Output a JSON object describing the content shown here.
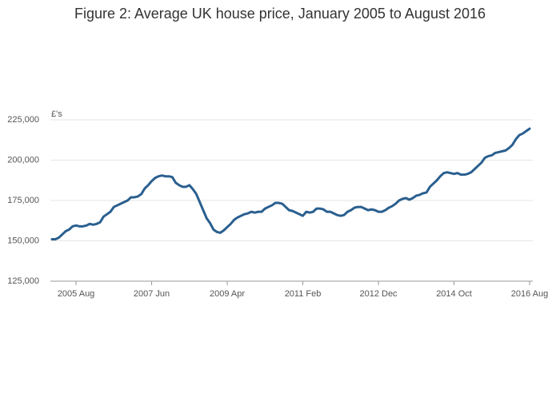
{
  "chart_data": {
    "type": "line",
    "title": "Figure 2: Average UK house price, January 2005 to August 2016",
    "y_label": "£'s",
    "x": [
      "2005-01",
      "2005-02",
      "2005-03",
      "2005-04",
      "2005-05",
      "2005-06",
      "2005-07",
      "2005-08",
      "2005-09",
      "2005-10",
      "2005-11",
      "2005-12",
      "2006-01",
      "2006-02",
      "2006-03",
      "2006-04",
      "2006-05",
      "2006-06",
      "2006-07",
      "2006-08",
      "2006-09",
      "2006-10",
      "2006-11",
      "2006-12",
      "2007-01",
      "2007-02",
      "2007-03",
      "2007-04",
      "2007-05",
      "2007-06",
      "2007-07",
      "2007-08",
      "2007-09",
      "2007-10",
      "2007-11",
      "2007-12",
      "2008-01",
      "2008-02",
      "2008-03",
      "2008-04",
      "2008-05",
      "2008-06",
      "2008-07",
      "2008-08",
      "2008-09",
      "2008-10",
      "2008-11",
      "2008-12",
      "2009-01",
      "2009-02",
      "2009-03",
      "2009-04",
      "2009-05",
      "2009-06",
      "2009-07",
      "2009-08",
      "2009-09",
      "2009-10",
      "2009-11",
      "2009-12",
      "2010-01",
      "2010-02",
      "2010-03",
      "2010-04",
      "2010-05",
      "2010-06",
      "2010-07",
      "2010-08",
      "2010-09",
      "2010-10",
      "2010-11",
      "2010-12",
      "2011-01",
      "2011-02",
      "2011-03",
      "2011-04",
      "2011-05",
      "2011-06",
      "2011-07",
      "2011-08",
      "2011-09",
      "2011-10",
      "2011-11",
      "2011-12",
      "2012-01",
      "2012-02",
      "2012-03",
      "2012-04",
      "2012-05",
      "2012-06",
      "2012-07",
      "2012-08",
      "2012-09",
      "2012-10",
      "2012-11",
      "2012-12",
      "2013-01",
      "2013-02",
      "2013-03",
      "2013-04",
      "2013-05",
      "2013-06",
      "2013-07",
      "2013-08",
      "2013-09",
      "2013-10",
      "2013-11",
      "2013-12",
      "2014-01",
      "2014-02",
      "2014-03",
      "2014-04",
      "2014-05",
      "2014-06",
      "2014-07",
      "2014-08",
      "2014-09",
      "2014-10",
      "2014-11",
      "2014-12",
      "2015-01",
      "2015-02",
      "2015-03",
      "2015-04",
      "2015-05",
      "2015-06",
      "2015-07",
      "2015-08",
      "2015-09",
      "2015-10",
      "2015-11",
      "2015-12",
      "2016-01",
      "2016-02",
      "2016-03",
      "2016-04",
      "2016-05",
      "2016-06",
      "2016-07",
      "2016-08"
    ],
    "series": [
      {
        "name": "Average UK house price",
        "color": "#2a5f8f",
        "values": [
          151000,
          151000,
          152000,
          154000,
          156000,
          157000,
          159000,
          159500,
          159000,
          159000,
          159500,
          160500,
          160000,
          160500,
          161500,
          165000,
          166500,
          168000,
          171000,
          172000,
          173000,
          174000,
          175000,
          177000,
          177000,
          177500,
          179000,
          182500,
          184500,
          187000,
          189000,
          190000,
          190500,
          190000,
          190000,
          189500,
          186000,
          184500,
          183500,
          183500,
          184500,
          182000,
          179000,
          174000,
          169000,
          164000,
          161000,
          157000,
          155500,
          155000,
          156500,
          158500,
          160500,
          163000,
          164500,
          165500,
          166500,
          167000,
          168000,
          167500,
          168000,
          168000,
          170000,
          171000,
          172000,
          173500,
          173500,
          173000,
          171000,
          169000,
          168500,
          167500,
          166500,
          165500,
          168000,
          167500,
          168000,
          170000,
          170000,
          169500,
          168000,
          168000,
          167000,
          166000,
          165500,
          166000,
          168000,
          169000,
          170500,
          171000,
          171000,
          170000,
          169000,
          169500,
          169000,
          168000,
          168000,
          169000,
          170500,
          171500,
          173000,
          175000,
          176000,
          176500,
          175500,
          176500,
          178000,
          178500,
          179500,
          180000,
          183500,
          185500,
          187500,
          190000,
          192000,
          192500,
          192000,
          191500,
          192000,
          191000,
          191000,
          191500,
          192500,
          194500,
          196500,
          198500,
          201500,
          202500,
          203000,
          204500,
          205000,
          205500,
          206000,
          207500,
          209500,
          213000,
          215500,
          216500,
          218000,
          219500
        ]
      }
    ],
    "xticks": [
      {
        "value": "2005-08",
        "label": "2005 Aug"
      },
      {
        "value": "2007-06",
        "label": "2007 Jun"
      },
      {
        "value": "2009-04",
        "label": "2009 Apr"
      },
      {
        "value": "2011-02",
        "label": "2011 Feb"
      },
      {
        "value": "2012-12",
        "label": "2012 Dec"
      },
      {
        "value": "2014-10",
        "label": "2014 Oct"
      },
      {
        "value": "2016-08",
        "label": "2016 Aug"
      }
    ],
    "ylim": [
      125000,
      225000
    ],
    "yticks": [
      {
        "value": 125000,
        "label": "125,000"
      },
      {
        "value": 150000,
        "label": "150,000"
      },
      {
        "value": 175000,
        "label": "175,000"
      },
      {
        "value": 200000,
        "label": "200,000"
      },
      {
        "value": 225000,
        "label": "225,000"
      }
    ],
    "grid": true
  }
}
